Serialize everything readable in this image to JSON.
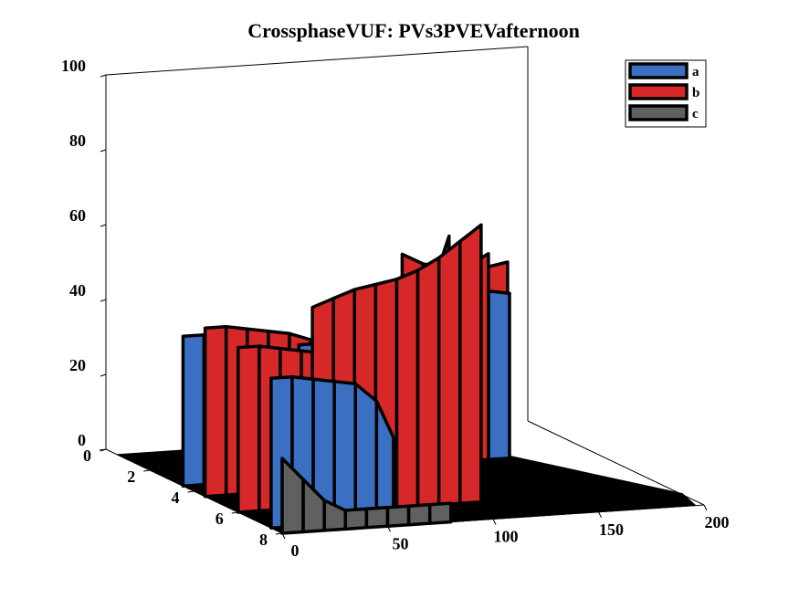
{
  "chart_data": {
    "type": "3d-ribbon",
    "title": "CrossphaseVUF: PVs3PVEVafternoon",
    "xlabel": "",
    "ylabel": "",
    "zlabel": "",
    "xlim": [
      0,
      200
    ],
    "ylim": [
      0,
      8
    ],
    "zlim": [
      0,
      100
    ],
    "x_ticks": [
      "0",
      "50",
      "100",
      "150",
      "200"
    ],
    "y_ticks": [
      "0",
      "2",
      "4",
      "6",
      "8"
    ],
    "z_ticks": [
      "0",
      "20",
      "40",
      "60",
      "80",
      "100"
    ],
    "grid": false,
    "legend_position": "top-right",
    "series": [
      {
        "name": "a",
        "color": "#3a6fc2",
        "ribbons": [
          {
            "y": 7.5,
            "x": [
              0,
              10,
              20,
              30,
              40,
              50,
              58
            ],
            "z": [
              40,
              40,
              39,
              38,
              37,
              32,
              22
            ]
          },
          {
            "y": 5.5,
            "x": [
              34,
              44,
              54,
              64,
              74,
              84
            ],
            "z": [
              42,
              42,
              42,
              43,
              46,
              52
            ]
          },
          {
            "y": 5.0,
            "x": [
              100,
              110,
              120
            ],
            "z": [
              30,
              30,
              30
            ]
          },
          {
            "y": 3.5,
            "x": [
              0,
              10,
              20,
              30,
              40,
              50
            ],
            "z": [
              40,
              40,
              40,
              40,
              38,
              35
            ]
          },
          {
            "y": 3.0,
            "x": [
              130,
              140,
              150,
              160
            ],
            "z": [
              45,
              45,
              45,
              44
            ]
          },
          {
            "y": 2.5,
            "x": [
              140,
              150
            ],
            "z": [
              30,
              22
            ]
          }
        ]
      },
      {
        "name": "b",
        "color": "#d62829",
        "ribbons": [
          {
            "y": 6.5,
            "x": [
              30,
              40,
              50,
              60,
              70,
              80,
              90,
              100,
              110
            ],
            "z": [
              55,
              57,
              59,
              60,
              61,
              63,
              66,
              70,
              74
            ]
          },
          {
            "y": 6.0,
            "x": [
              0,
              10,
              20,
              30,
              40,
              50,
              60
            ],
            "z": [
              44,
              44,
              43,
              42,
              41,
              40,
              38
            ]
          },
          {
            "y": 5.5,
            "x": [
              82,
              92,
              102,
              112
            ],
            "z": [
              40,
              38,
              37,
              36
            ]
          },
          {
            "y": 4.5,
            "x": [
              0,
              10,
              20,
              30,
              40,
              50,
              60,
              70
            ],
            "z": [
              45,
              45,
              44,
              43,
              42,
              40,
              38,
              35
            ]
          },
          {
            "y": 3.0,
            "x": [
              100,
              110,
              120,
              130,
              140,
              150
            ],
            "z": [
              48,
              48,
              49,
              50,
              52,
              55
            ]
          },
          {
            "y": 1.0,
            "x": [
              130,
              140,
              150,
              160,
              170,
              180
            ],
            "z": [
              50,
              47,
              46,
              45,
              45,
              46
            ]
          }
        ]
      },
      {
        "name": "c",
        "color": "#606060",
        "ribbons": [
          {
            "y": 8.0,
            "x": [
              0,
              10,
              20,
              30,
              40,
              50,
              60,
              70,
              80
            ],
            "z": [
              20,
              14,
              8,
              5,
              5,
              5,
              5,
              5,
              5
            ]
          },
          {
            "y": 6.0,
            "x": [
              44,
              54,
              64,
              74,
              84,
              94,
              100
            ],
            "z": [
              48,
              49,
              50,
              51,
              54,
              60,
              70
            ]
          },
          {
            "y": 3.0,
            "x": [
              120,
              125,
              130
            ],
            "z": [
              45,
              50,
              55
            ]
          },
          {
            "y": 2.0,
            "x": [
              130,
              140,
              150
            ],
            "z": [
              20,
              22,
              28
            ]
          }
        ]
      }
    ]
  }
}
